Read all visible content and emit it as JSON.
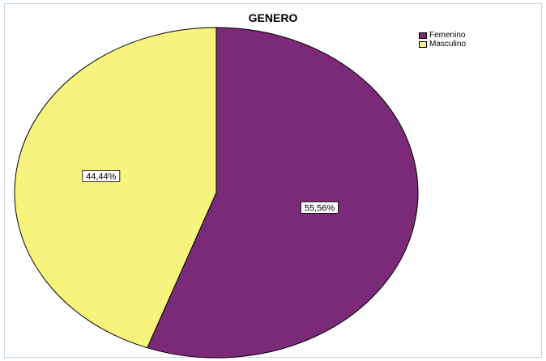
{
  "chart_data": {
    "type": "pie",
    "title": "GENERO",
    "categories": [
      "Femenino",
      "Masculino"
    ],
    "values": [
      55.56,
      44.44
    ],
    "data_labels": [
      "55,56%",
      "44,44%"
    ],
    "colors": [
      "#7b2a7a",
      "#f6f47c"
    ],
    "legend_position": "top-right"
  }
}
